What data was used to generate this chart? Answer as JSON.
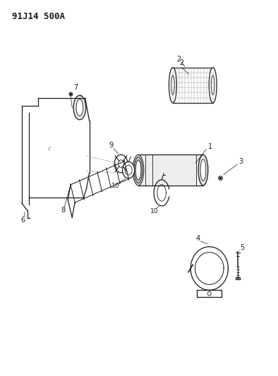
{
  "title": "91J14 500A",
  "bg_color": "#ffffff",
  "line_color": "#1a1a1a",
  "gray_color": "#888888",
  "light_gray": "#cccccc",
  "title_fontsize": 9,
  "fig_width": 3.94,
  "fig_height": 5.33,
  "dpi": 100
}
